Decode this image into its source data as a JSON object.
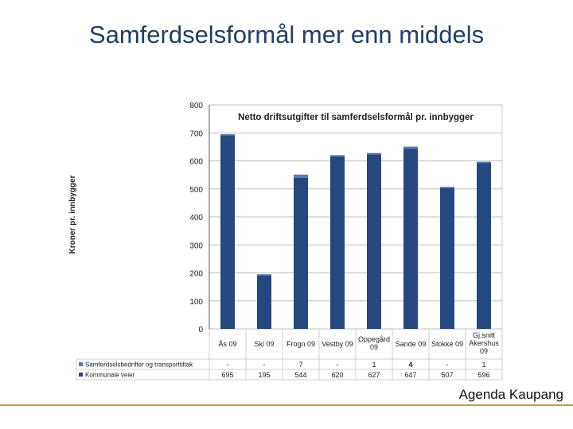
{
  "slide": {
    "title": "Samferdselsformål mer enn middels",
    "footer": "Agenda Kaupang"
  },
  "colors": {
    "bar": "#24487f",
    "bar_top": "#5b7cae",
    "grid": "#bfbfbf",
    "footer_line": "#c49a48"
  },
  "chart_data": {
    "type": "bar",
    "title": "Netto driftsutgifter til samferdselsformål pr. innbygger",
    "ylabel": "Kroner pr. innbygger",
    "xlabel": "",
    "ylim": [
      0,
      800
    ],
    "yticks": [
      "0",
      "100",
      "200",
      "300",
      "400",
      "500",
      "600",
      "700",
      "800"
    ],
    "grid": true,
    "legend_position": "bottom-table",
    "categories": [
      "Ås 09",
      "Ski 09",
      "Frogn 09",
      "Vestby 09",
      "Oppegård 09",
      "Sande 09",
      "Stokke 09",
      "Gj.snitt Akershus 09"
    ],
    "series": [
      {
        "name": "Samferdselsbedrifter og transporttiltak",
        "values": [
          0,
          0,
          7,
          0,
          1,
          4,
          0,
          1
        ],
        "labels": [
          "-",
          "-",
          "7",
          "-",
          "1",
          "4",
          "-",
          "1"
        ]
      },
      {
        "name": "Kommunale veier",
        "values": [
          695,
          195,
          544,
          620,
          627,
          647,
          507,
          596
        ],
        "labels": [
          "695",
          "195",
          "544",
          "620",
          "627",
          "647",
          "507",
          "596"
        ]
      }
    ]
  }
}
